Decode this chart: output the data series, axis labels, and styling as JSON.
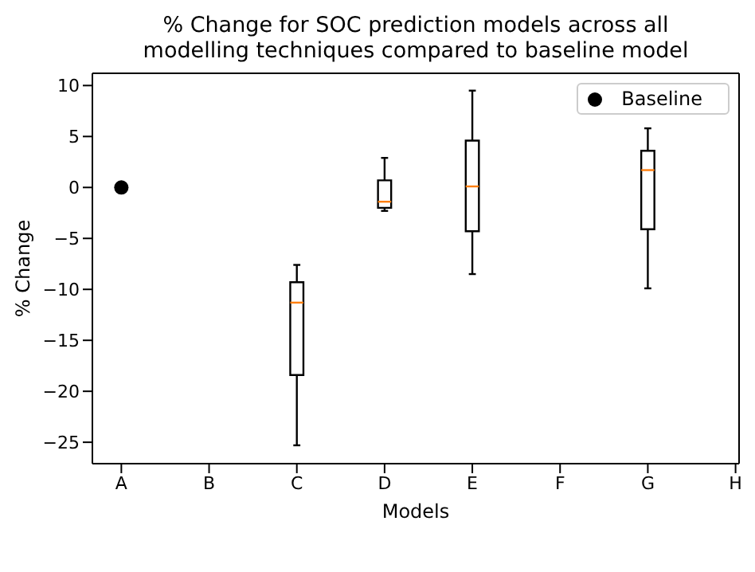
{
  "chart_data": {
    "type": "box",
    "title": "% Change for SOC prediction models across all modelling techniques compared to baseline model",
    "xlabel": "Models",
    "ylabel": "% Change",
    "categories": [
      "A",
      "B",
      "C",
      "D",
      "E",
      "F",
      "G",
      "H"
    ],
    "boxes": [
      null,
      null,
      {
        "low": -25.3,
        "q1": -18.4,
        "median": -11.3,
        "q3": -9.3,
        "high": -7.6
      },
      {
        "low": -2.3,
        "q1": -2.0,
        "median": -1.4,
        "q3": 0.7,
        "high": 2.9
      },
      {
        "low": -8.5,
        "q1": -4.3,
        "median": 0.1,
        "q3": 4.6,
        "high": 9.5
      },
      null,
      {
        "low": -9.9,
        "q1": -4.1,
        "median": 1.7,
        "q3": 3.6,
        "high": 5.8
      },
      null
    ],
    "series": [
      {
        "name": "Baseline",
        "type": "scatter",
        "color": "#000000",
        "x": [
          "A"
        ],
        "values": [
          0
        ]
      }
    ],
    "marker": "circle",
    "legend": "top right",
    "grid": false,
    "ylim": [
      -27.1,
      11.2
    ],
    "yticks": [
      -25,
      -20,
      -15,
      -10,
      -5,
      0,
      5,
      10
    ]
  }
}
